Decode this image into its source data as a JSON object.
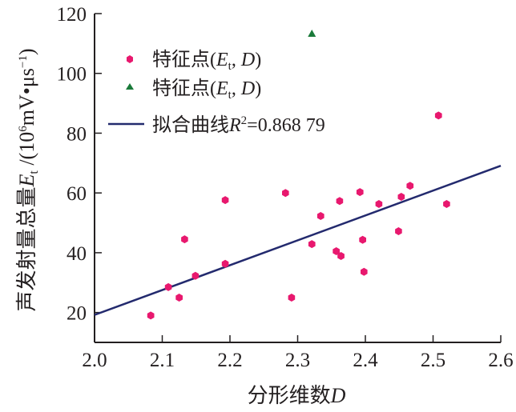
{
  "chart_data": {
    "type": "scatter",
    "xlabel": "分形维数D",
    "ylabel": "声发射量总量Et /(10^6mV•μs^-1)",
    "xlim": [
      2.0,
      2.6
    ],
    "ylim": [
      10,
      120
    ],
    "xticks": [
      "2.0",
      "2.1",
      "2.2",
      "2.3",
      "2.4",
      "2.5",
      "2.6"
    ],
    "yticks": [
      "20",
      "40",
      "60",
      "80",
      "100",
      "120"
    ],
    "grid": false,
    "legend_position": "top-left",
    "colors": {
      "points": "#e8186e",
      "triangle": "#1a7a3a",
      "line": "#232a6e"
    },
    "series": [
      {
        "name": "特征点(Et, D)",
        "marker": "hexagon",
        "points": [
          [
            2.083,
            19
          ],
          [
            2.109,
            28.5
          ],
          [
            2.125,
            25
          ],
          [
            2.133,
            44.5
          ],
          [
            2.149,
            32.3
          ],
          [
            2.193,
            57.6
          ],
          [
            2.193,
            36.3
          ],
          [
            2.282,
            60
          ],
          [
            2.291,
            25
          ],
          [
            2.321,
            42.9
          ],
          [
            2.334,
            52.3
          ],
          [
            2.357,
            40.5
          ],
          [
            2.362,
            57.3
          ],
          [
            2.364,
            38.9
          ],
          [
            2.392,
            60.3
          ],
          [
            2.396,
            44.3
          ],
          [
            2.398,
            33.6
          ],
          [
            2.42,
            56.3
          ],
          [
            2.449,
            47.2
          ],
          [
            2.453,
            58.7
          ],
          [
            2.466,
            62.4
          ],
          [
            2.508,
            85.9
          ],
          [
            2.52,
            56.3
          ]
        ]
      },
      {
        "name": "特征点(Et, D)",
        "marker": "triangle",
        "points": [
          [
            2.321,
            113.3
          ]
        ]
      },
      {
        "name": "拟合曲线R²=0.868 79",
        "type": "line",
        "points": [
          [
            2.0,
            19.2
          ],
          [
            2.6,
            69.1
          ]
        ]
      }
    ],
    "legend": [
      {
        "label": "特征点(",
        "italic": "E",
        "sub": "t",
        "rest": ", ",
        "italic2": "D",
        "end": ")"
      },
      {
        "label": "特征点(",
        "italic": "E",
        "sub": "t",
        "rest": ", ",
        "italic2": "D",
        "end": ")"
      },
      {
        "label": "拟合曲线",
        "italic": "R",
        "sup": "2",
        "rest": "=0.868 79"
      }
    ],
    "ylabel_parts": {
      "main": "声发射量总量",
      "italic": "E",
      "sub": "t",
      "unit1": " /(10",
      "sup1": "6",
      "unit2": "mV•μs",
      "sup2": "−1",
      "end": ")"
    },
    "xlabel_parts": {
      "main": "分形维数",
      "italic": "D"
    }
  }
}
